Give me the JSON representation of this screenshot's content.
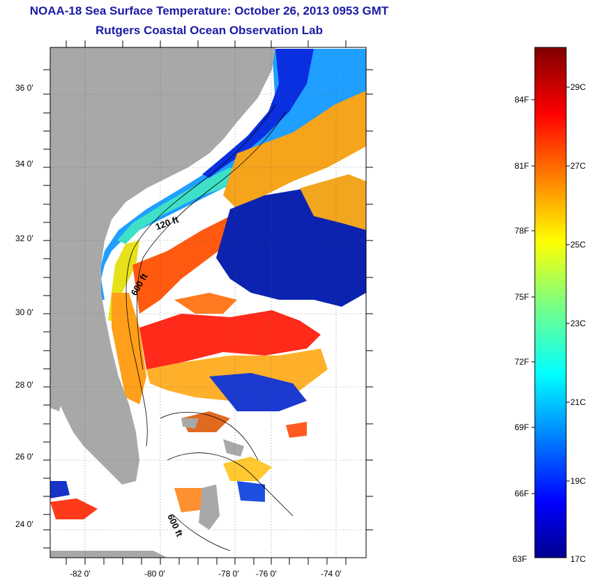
{
  "title": "NOAA-18 Sea Surface Temperature:  October 26, 2013 0953 GMT",
  "subtitle": "Rutgers Coastal Ocean Observation Lab",
  "map": {
    "lat_labels": [
      "36 0'",
      "34 0'",
      "32 0'",
      "30 0'",
      "28 0'",
      "26 0'",
      "24 0'"
    ],
    "lon_labels": [
      "-82 0'",
      "-80 0'",
      "-78 0'",
      "-76 0'",
      "-74 0'"
    ],
    "depth_labels": [
      "120 ft",
      "600 ft",
      "600 ft"
    ],
    "land_color": "#a8a8a8",
    "gridlines": "dotted"
  },
  "colorbar": {
    "f_labels": [
      "84F",
      "81F",
      "78F",
      "75F",
      "72F",
      "69F",
      "66F",
      "63F"
    ],
    "c_labels": [
      "29C",
      "27C",
      "25C",
      "23C",
      "21C",
      "19C",
      "17C"
    ],
    "colormap": "jet"
  }
}
